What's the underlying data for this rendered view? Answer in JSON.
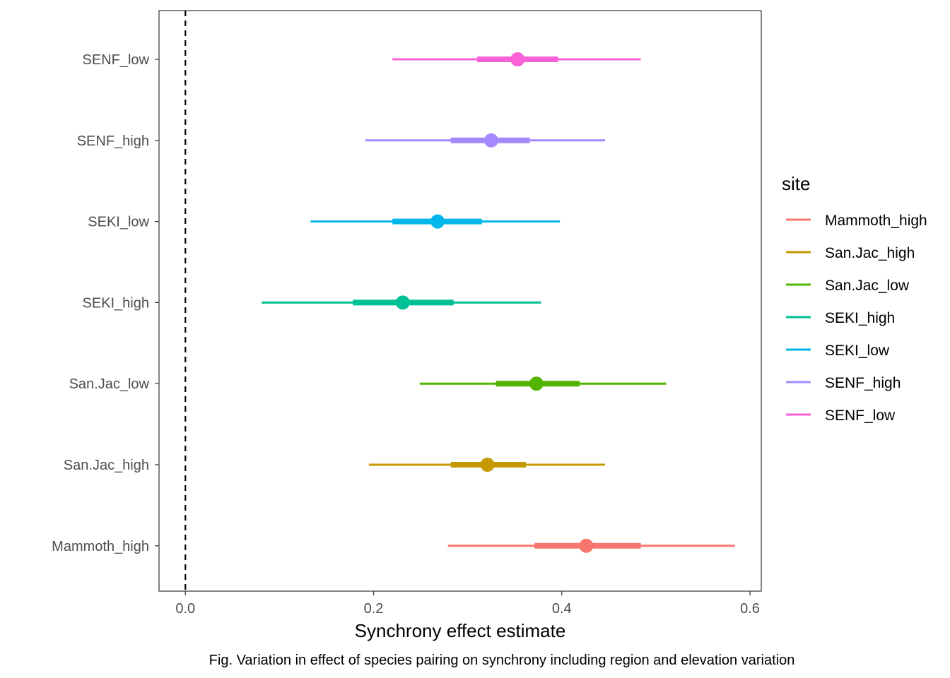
{
  "chart_data": {
    "type": "interval",
    "xlabel": "Synchrony effect estimate",
    "ylabel": "",
    "xlim": [
      -0.028,
      0.612
    ],
    "xticks": [
      0.0,
      0.2,
      0.4,
      0.6
    ],
    "xtick_labels": [
      "0.0",
      "0.2",
      "0.4",
      "0.6"
    ],
    "reference_line": {
      "x": 0,
      "style": "dashed",
      "color": "#000000"
    },
    "grid": false,
    "legend": {
      "title": "site",
      "position": "right",
      "entries": [
        "Mammoth_high",
        "San.Jac_high",
        "San.Jac_low",
        "SEKI_high",
        "SEKI_low",
        "SENF_high",
        "SENF_low"
      ]
    },
    "categories": [
      "Mammoth_high",
      "San.Jac_high",
      "San.Jac_low",
      "SEKI_high",
      "SEKI_low",
      "SENF_high",
      "SENF_low"
    ],
    "series": [
      {
        "name": "Mammoth_high",
        "color": "#F8766D",
        "estimate": 0.426,
        "inner": [
          0.371,
          0.484
        ],
        "outer": [
          0.279,
          0.584
        ]
      },
      {
        "name": "San.Jac_high",
        "color": "#C49A00",
        "estimate": 0.321,
        "inner": [
          0.282,
          0.362
        ],
        "outer": [
          0.195,
          0.446
        ]
      },
      {
        "name": "San.Jac_low",
        "color": "#53B400",
        "estimate": 0.373,
        "inner": [
          0.33,
          0.419
        ],
        "outer": [
          0.249,
          0.511
        ]
      },
      {
        "name": "SEKI_high",
        "color": "#00C094",
        "estimate": 0.231,
        "inner": [
          0.178,
          0.285
        ],
        "outer": [
          0.081,
          0.378
        ]
      },
      {
        "name": "SEKI_low",
        "color": "#00B6EB",
        "estimate": 0.268,
        "inner": [
          0.22,
          0.315
        ],
        "outer": [
          0.133,
          0.398
        ]
      },
      {
        "name": "SENF_high",
        "color": "#A58AFF",
        "estimate": 0.325,
        "inner": [
          0.282,
          0.366
        ],
        "outer": [
          0.191,
          0.446
        ]
      },
      {
        "name": "SENF_low",
        "color": "#FB61D7",
        "estimate": 0.353,
        "inner": [
          0.31,
          0.396
        ],
        "outer": [
          0.22,
          0.484
        ]
      }
    ]
  },
  "caption": "Fig. Variation in effect of species pairing on synchrony including region and elevation variation"
}
